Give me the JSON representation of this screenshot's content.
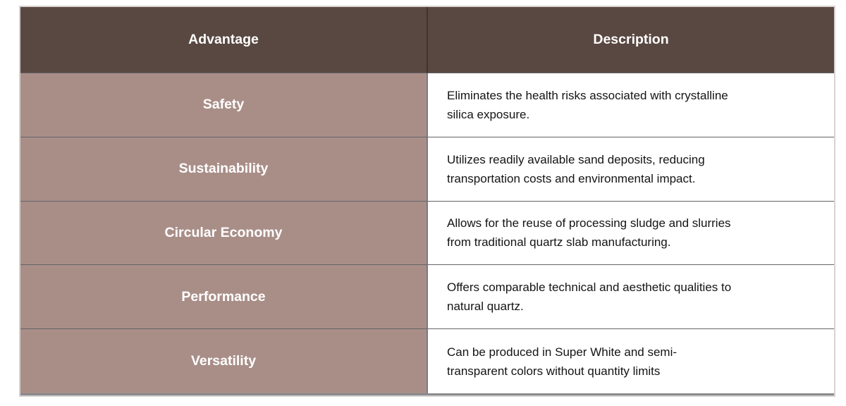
{
  "table": {
    "columns": [
      {
        "label": "Advantage"
      },
      {
        "label": "Description"
      }
    ],
    "rows": [
      {
        "advantage": "Safety",
        "description": "Eliminates the health risks associated with crystalline\nsilica exposure."
      },
      {
        "advantage": "Sustainability",
        "description": "Utilizes readily available sand deposits, reducing\ntransportation costs and environmental impact."
      },
      {
        "advantage": "Circular Economy",
        "description": "Allows for the reuse of processing sludge and slurries\nfrom traditional quartz slab manufacturing."
      },
      {
        "advantage": "Performance",
        "description": "Offers comparable technical and aesthetic qualities to\nnatural quartz."
      },
      {
        "advantage": "Versatility",
        "description": "Can be produced in Super White and semi-\ntransparent colors without quantity limits"
      }
    ]
  },
  "colors": {
    "header_bg": "#594841",
    "header_text": "#ffffff",
    "advantage_bg": "#a98e88",
    "advantage_text": "#ffffff",
    "description_bg": "#ffffff",
    "description_text": "#141414",
    "row_divider": "#646467",
    "column_divider": "#797b80",
    "header_column_divider": "#3e332d",
    "outer_border": "#d8d3d1",
    "bottom_border": "#8a8b8d",
    "page_bg": "#ffffff"
  }
}
